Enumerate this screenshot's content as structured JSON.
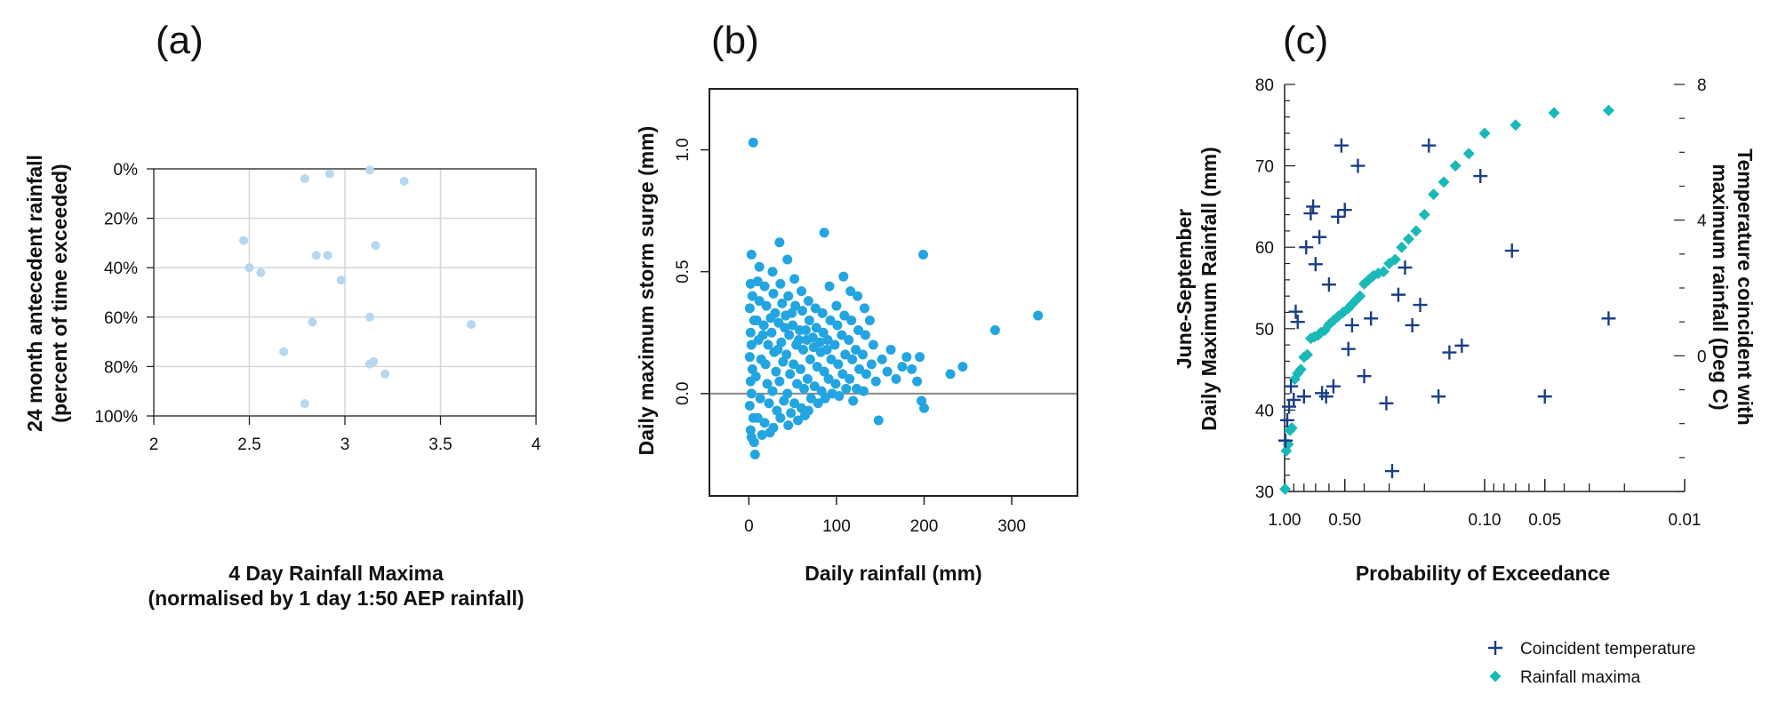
{
  "colors": {
    "a_point": "#b5d7f0",
    "b_point": "#22a5e0",
    "c_plus": "#1a3e86",
    "c_diamond": "#19b9b8",
    "grid": "#d6d6d6",
    "zero_line": "#888888"
  },
  "chart_data": [
    {
      "id": "a",
      "type": "scatter",
      "panel_label": "(a)",
      "xlabel": "4 Day Rainfall Maxima",
      "xlabel2": "(normalised by 1 day 1:50 AEP rainfall)",
      "ylabel": "24 month antecedent rainfall",
      "ylabel2": "(percent of time exceeded)",
      "xlim": [
        2,
        4
      ],
      "ylim": [
        0,
        100
      ],
      "y_reversed": true,
      "grid": true,
      "x_ticks": [
        "2",
        "2.5",
        "3",
        "3.5",
        "4"
      ],
      "y_ticks": [
        "0%",
        "20%",
        "40%",
        "60%",
        "80%",
        "100%"
      ],
      "points": [
        [
          2.79,
          4
        ],
        [
          2.92,
          2
        ],
        [
          3.13,
          0.5
        ],
        [
          3.31,
          5
        ],
        [
          2.47,
          29
        ],
        [
          2.5,
          40
        ],
        [
          2.56,
          42
        ],
        [
          2.85,
          35
        ],
        [
          2.91,
          35
        ],
        [
          3.16,
          31
        ],
        [
          2.98,
          45
        ],
        [
          3.13,
          60
        ],
        [
          2.83,
          62
        ],
        [
          3.66,
          63
        ],
        [
          2.68,
          74
        ],
        [
          3.13,
          79
        ],
        [
          3.15,
          78
        ],
        [
          3.21,
          83
        ],
        [
          2.79,
          95
        ]
      ]
    },
    {
      "id": "b",
      "type": "scatter",
      "panel_label": "(b)",
      "xlabel": "Daily rainfall (mm)",
      "ylabel": "Daily maximum storm surge (mm)",
      "xlim": [
        -45,
        375
      ],
      "ylim": [
        -0.42,
        1.25
      ],
      "grid": false,
      "reference_line_y": 0.0,
      "x_ticks": [
        "0",
        "100",
        "200",
        "300"
      ],
      "y_ticks": [
        "0.0",
        "0.5",
        "1.0"
      ],
      "points": [
        [
          5,
          1.03
        ],
        [
          3,
          0.57
        ],
        [
          2,
          0.45
        ],
        [
          4,
          0.4
        ],
        [
          1,
          0.35
        ],
        [
          6,
          0.3
        ],
        [
          2,
          0.25
        ],
        [
          3,
          0.2
        ],
        [
          1,
          0.15
        ],
        [
          4,
          0.1
        ],
        [
          2,
          0.05
        ],
        [
          3,
          0.0
        ],
        [
          1,
          -0.05
        ],
        [
          5,
          -0.1
        ],
        [
          2,
          -0.15
        ],
        [
          6,
          -0.2
        ],
        [
          7,
          -0.25
        ],
        [
          3,
          -0.18
        ],
        [
          10,
          0.46
        ],
        [
          12,
          0.38
        ],
        [
          9,
          0.3
        ],
        [
          11,
          0.22
        ],
        [
          14,
          0.14
        ],
        [
          8,
          0.07
        ],
        [
          13,
          -0.02
        ],
        [
          10,
          -0.1
        ],
        [
          15,
          -0.17
        ],
        [
          12,
          0.52
        ],
        [
          18,
          0.44
        ],
        [
          20,
          0.36
        ],
        [
          17,
          0.28
        ],
        [
          22,
          0.2
        ],
        [
          19,
          0.12
        ],
        [
          21,
          0.04
        ],
        [
          23,
          -0.04
        ],
        [
          18,
          -0.12
        ],
        [
          24,
          -0.16
        ],
        [
          16,
          0.24
        ],
        [
          27,
          0.5
        ],
        [
          28,
          0.41
        ],
        [
          30,
          0.33
        ],
        [
          26,
          0.25
        ],
        [
          29,
          0.17
        ],
        [
          31,
          0.09
        ],
        [
          27,
          0.01
        ],
        [
          32,
          -0.07
        ],
        [
          28,
          -0.14
        ],
        [
          25,
          0.31
        ],
        [
          35,
          0.62
        ],
        [
          36,
          0.45
        ],
        [
          38,
          0.37
        ],
        [
          34,
          0.29
        ],
        [
          37,
          0.21
        ],
        [
          39,
          0.13
        ],
        [
          35,
          0.05
        ],
        [
          40,
          -0.03
        ],
        [
          36,
          -0.1
        ],
        [
          33,
          0.18
        ],
        [
          44,
          0.55
        ],
        [
          45,
          0.4
        ],
        [
          42,
          0.32
        ],
        [
          46,
          0.24
        ],
        [
          43,
          0.16
        ],
        [
          47,
          0.08
        ],
        [
          44,
          0.0
        ],
        [
          48,
          -0.08
        ],
        [
          45,
          -0.13
        ],
        [
          41,
          0.27
        ],
        [
          52,
          0.47
        ],
        [
          53,
          0.36
        ],
        [
          50,
          0.28
        ],
        [
          54,
          0.2
        ],
        [
          51,
          0.12
        ],
        [
          55,
          0.04
        ],
        [
          52,
          -0.04
        ],
        [
          56,
          -0.11
        ],
        [
          49,
          0.33
        ],
        [
          60,
          0.42
        ],
        [
          61,
          0.34
        ],
        [
          58,
          0.26
        ],
        [
          62,
          0.18
        ],
        [
          59,
          0.1
        ],
        [
          63,
          0.02
        ],
        [
          60,
          -0.06
        ],
        [
          64,
          -0.09
        ],
        [
          57,
          0.22
        ],
        [
          68,
          0.38
        ],
        [
          69,
          0.3
        ],
        [
          66,
          0.22
        ],
        [
          70,
          0.14
        ],
        [
          67,
          0.06
        ],
        [
          71,
          -0.02
        ],
        [
          68,
          -0.07
        ],
        [
          65,
          0.26
        ],
        [
          76,
          0.35
        ],
        [
          77,
          0.27
        ],
        [
          74,
          0.19
        ],
        [
          78,
          0.11
        ],
        [
          75,
          0.03
        ],
        [
          79,
          -0.04
        ],
        [
          73,
          0.23
        ],
        [
          86,
          0.66
        ],
        [
          84,
          0.33
        ],
        [
          85,
          0.25
        ],
        [
          82,
          0.17
        ],
        [
          86,
          0.09
        ],
        [
          83,
          0.01
        ],
        [
          87,
          -0.02
        ],
        [
          81,
          0.21
        ],
        [
          92,
          0.44
        ],
        [
          93,
          0.3
        ],
        [
          90,
          0.22
        ],
        [
          94,
          0.14
        ],
        [
          91,
          0.06
        ],
        [
          95,
          0.0
        ],
        [
          89,
          0.18
        ],
        [
          100,
          0.36
        ],
        [
          101,
          0.28
        ],
        [
          98,
          0.2
        ],
        [
          102,
          0.12
        ],
        [
          99,
          0.04
        ],
        [
          103,
          -0.01
        ],
        [
          108,
          0.48
        ],
        [
          109,
          0.32
        ],
        [
          106,
          0.24
        ],
        [
          110,
          0.16
        ],
        [
          107,
          0.08
        ],
        [
          111,
          0.02
        ],
        [
          116,
          0.42
        ],
        [
          117,
          0.3
        ],
        [
          114,
          0.22
        ],
        [
          118,
          0.14
        ],
        [
          115,
          0.06
        ],
        [
          119,
          -0.03
        ],
        [
          124,
          0.4
        ],
        [
          125,
          0.26
        ],
        [
          122,
          0.18
        ],
        [
          126,
          0.1
        ],
        [
          123,
          0.02
        ],
        [
          132,
          0.35
        ],
        [
          133,
          0.24
        ],
        [
          130,
          0.16
        ],
        [
          134,
          0.08
        ],
        [
          131,
          0.01
        ],
        [
          138,
          0.3
        ],
        [
          140,
          0.12
        ],
        [
          142,
          0.2
        ],
        [
          145,
          0.05
        ],
        [
          148,
          -0.11
        ],
        [
          152,
          0.14
        ],
        [
          158,
          0.09
        ],
        [
          162,
          0.18
        ],
        [
          168,
          0.06
        ],
        [
          175,
          0.11
        ],
        [
          180,
          0.15
        ],
        [
          186,
          0.1
        ],
        [
          192,
          0.05
        ],
        [
          195,
          0.15
        ],
        [
          197,
          -0.03
        ],
        [
          200,
          -0.06
        ],
        [
          199,
          0.57
        ],
        [
          230,
          0.08
        ],
        [
          244,
          0.11
        ],
        [
          281,
          0.26
        ],
        [
          330,
          0.32
        ]
      ]
    },
    {
      "id": "c",
      "type": "scatter",
      "panel_label": "(c)",
      "xlabel": "Probability of Exceedance",
      "ylabel": "June-September",
      "ylabel2": "Daily Maximum Rainfall (mm)",
      "y2label": "Temperature coincident with",
      "y2label2": "maximum rainfall (Deg C)",
      "x_scale": "log-reversed",
      "xlim": [
        1.0,
        0.01
      ],
      "ylim": [
        30,
        80
      ],
      "y2lim": [
        -4,
        8
      ],
      "x_ticks": [
        "1.00",
        "0.50",
        "0.10",
        "0.05",
        "0.01"
      ],
      "y_ticks": [
        "30",
        "40",
        "50",
        "60",
        "70",
        "80"
      ],
      "y2_ticks": [
        "0",
        "4",
        "8"
      ],
      "legend": {
        "position": "bottom-right",
        "entries": [
          "Coincident temperature",
          "Rainfall maxima"
        ]
      },
      "series": [
        {
          "name": "Coincident temperature",
          "marker": "plus",
          "axis": "y2",
          "points": [
            [
              0.99,
              -2.5
            ],
            [
              0.97,
              -1.9
            ],
            [
              0.95,
              -1.5
            ],
            [
              0.93,
              -0.9
            ],
            [
              0.9,
              -1.3
            ],
            [
              0.88,
              1.3
            ],
            [
              0.86,
              1.0
            ],
            [
              0.8,
              -1.2
            ],
            [
              0.78,
              3.2
            ],
            [
              0.74,
              4.2
            ],
            [
              0.72,
              4.4
            ],
            [
              0.7,
              2.7
            ],
            [
              0.67,
              3.5
            ],
            [
              0.65,
              -1.1
            ],
            [
              0.62,
              -1.2
            ],
            [
              0.6,
              2.1
            ],
            [
              0.57,
              -0.9
            ],
            [
              0.54,
              4.1
            ],
            [
              0.52,
              6.2
            ],
            [
              0.5,
              4.3
            ],
            [
              0.48,
              0.2
            ],
            [
              0.46,
              0.9
            ],
            [
              0.43,
              5.6
            ],
            [
              0.4,
              -0.6
            ],
            [
              0.37,
              1.1
            ],
            [
              0.31,
              -1.4
            ],
            [
              0.29,
              -3.4
            ],
            [
              0.27,
              1.8
            ],
            [
              0.25,
              2.6
            ],
            [
              0.23,
              0.9
            ],
            [
              0.21,
              1.5
            ],
            [
              0.19,
              6.2
            ],
            [
              0.17,
              -1.2
            ],
            [
              0.15,
              0.1
            ],
            [
              0.13,
              0.3
            ],
            [
              0.105,
              5.3
            ],
            [
              0.073,
              3.1
            ],
            [
              0.05,
              -1.2
            ],
            [
              0.024,
              1.1
            ]
          ]
        },
        {
          "name": "Rainfall maxima",
          "marker": "diamond",
          "axis": "y",
          "points": [
            [
              0.995,
              30.3
            ],
            [
              0.98,
              35.0
            ],
            [
              0.96,
              35.8
            ],
            [
              0.94,
              37.5
            ],
            [
              0.92,
              37.8
            ],
            [
              0.89,
              43.8
            ],
            [
              0.86,
              44.5
            ],
            [
              0.83,
              45.0
            ],
            [
              0.8,
              46.5
            ],
            [
              0.77,
              46.8
            ],
            [
              0.74,
              48.8
            ],
            [
              0.71,
              49.0
            ],
            [
              0.68,
              49.2
            ],
            [
              0.66,
              49.5
            ],
            [
              0.63,
              49.8
            ],
            [
              0.6,
              50.5
            ],
            [
              0.57,
              51.0
            ],
            [
              0.54,
              51.5
            ],
            [
              0.51,
              52.0
            ],
            [
              0.48,
              52.5
            ],
            [
              0.46,
              53.0
            ],
            [
              0.44,
              53.5
            ],
            [
              0.42,
              54.0
            ],
            [
              0.4,
              55.5
            ],
            [
              0.38,
              56.0
            ],
            [
              0.36,
              56.5
            ],
            [
              0.34,
              56.8
            ],
            [
              0.32,
              57.0
            ],
            [
              0.3,
              58.0
            ],
            [
              0.28,
              58.5
            ],
            [
              0.26,
              60.0
            ],
            [
              0.24,
              61.0
            ],
            [
              0.22,
              62.0
            ],
            [
              0.2,
              64.0
            ],
            [
              0.18,
              66.5
            ],
            [
              0.16,
              68.0
            ],
            [
              0.14,
              70.0
            ],
            [
              0.12,
              71.5
            ],
            [
              0.1,
              74.0
            ],
            [
              0.07,
              75.0
            ],
            [
              0.045,
              76.5
            ],
            [
              0.024,
              76.8
            ]
          ]
        }
      ]
    }
  ]
}
